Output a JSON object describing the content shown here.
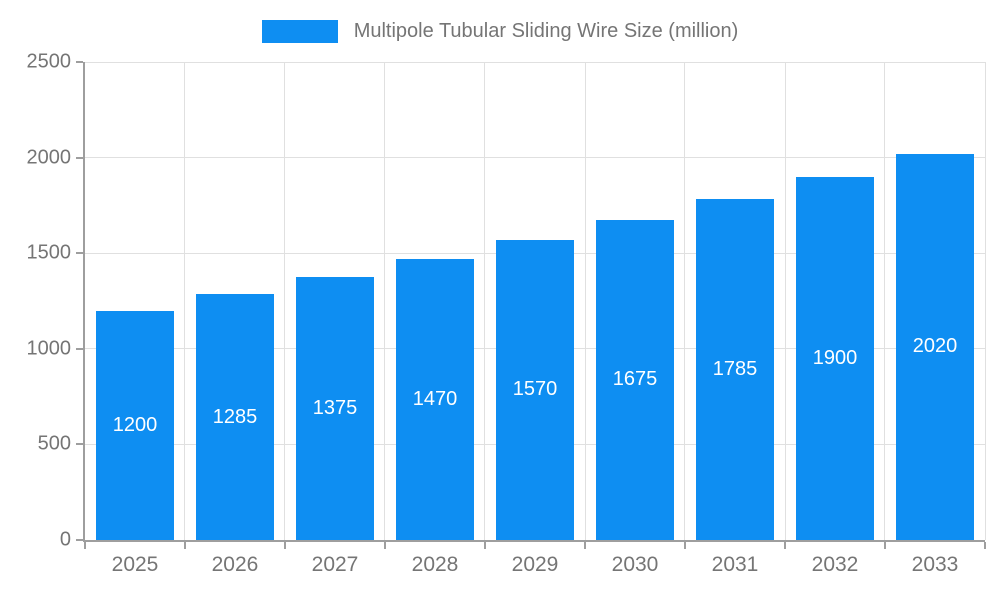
{
  "chart_data": {
    "type": "bar",
    "title": "Multipole Tubular Sliding Wire Size (million)",
    "categories": [
      "2025",
      "2026",
      "2027",
      "2028",
      "2029",
      "2030",
      "2031",
      "2032",
      "2033"
    ],
    "values": [
      1200,
      1285,
      1375,
      1470,
      1570,
      1675,
      1785,
      1900,
      2020
    ],
    "value_labels": [
      "1200",
      "1285",
      "1375",
      "1470",
      "1570",
      "1675",
      "1785",
      "1900",
      "2020"
    ],
    "ylim": [
      0,
      2500
    ],
    "yticks": [
      0,
      500,
      1000,
      1500,
      2000,
      2500
    ],
    "ytick_labels": [
      "0",
      "500",
      "1000",
      "1500",
      "2000",
      "2500"
    ],
    "grid": true,
    "legend_position": "top",
    "colors": {
      "bar": "#0e8ef2",
      "bar_value_text": "#ffffff",
      "axis_text": "#757575",
      "grid_line": "#e0e0e0",
      "axis_line": "#9e9e9e",
      "background": "#ffffff"
    }
  }
}
